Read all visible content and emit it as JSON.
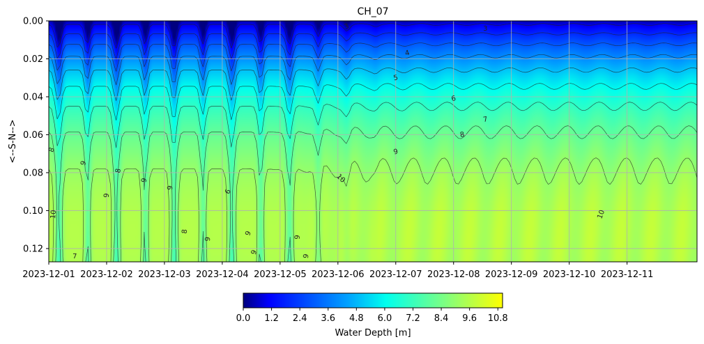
{
  "chart_data": {
    "type": "heatmap",
    "title": "CH_07",
    "xlabel": "",
    "ylabel": "<--S-N-->",
    "x_tick_labels": [
      "2023-12-01",
      "2023-12-02",
      "2023-12-03",
      "2023-12-04",
      "2023-12-05",
      "2023-12-06",
      "2023-12-07",
      "2023-12-08",
      "2023-12-09",
      "2023-12-10",
      "2023-12-11"
    ],
    "xlim": [
      "2023-12-01 00:00",
      "2023-12-12 05:00"
    ],
    "y_tick_labels": [
      "0.00",
      "0.02",
      "0.04",
      "0.06",
      "0.08",
      "0.10",
      "0.12"
    ],
    "ylim": [
      0.0,
      0.127
    ],
    "y_inverted": true,
    "grid": true,
    "colorbar": {
      "label": "Water Depth [m]",
      "ticks": [
        "0.0",
        "1.2",
        "2.4",
        "3.6",
        "4.8",
        "6.0",
        "7.2",
        "8.4",
        "9.6",
        "10.8"
      ],
      "range": [
        0.0,
        11.0
      ],
      "colormap": [
        "#00007f",
        "#0000ff",
        "#00a0ff",
        "#00ffee",
        "#7fff80",
        "#ffff00"
      ]
    },
    "z_description_by_position": {
      "surface_y_0": [
        0.2,
        3.0
      ],
      "y_0.02": [
        2.0,
        4.5
      ],
      "y_0.04": [
        4.5,
        6.2
      ],
      "y_0.06": [
        6.5,
        8.2
      ],
      "y_0.08": [
        8.0,
        9.8
      ],
      "y_0.10": [
        8.5,
        10.9
      ],
      "y_0.12": [
        7.5,
        10.3
      ]
    },
    "contour_levels": [
      1,
      2,
      3,
      4,
      5,
      6,
      7,
      8,
      9,
      10
    ],
    "contour_labels": [
      {
        "text": "3"
      },
      {
        "text": "3"
      },
      {
        "text": "4"
      },
      {
        "text": "5"
      },
      {
        "text": "6"
      },
      {
        "text": "7"
      },
      {
        "text": "8"
      },
      {
        "text": "9"
      },
      {
        "text": "10"
      },
      {
        "text": "10"
      },
      {
        "text": "9"
      },
      {
        "text": "8"
      },
      {
        "text": "9"
      },
      {
        "text": "9"
      },
      {
        "text": "6"
      },
      {
        "text": "10"
      },
      {
        "text": "9"
      },
      {
        "text": "8"
      },
      {
        "text": "9"
      },
      {
        "text": "9"
      },
      {
        "text": "9"
      },
      {
        "text": "9"
      },
      {
        "text": "7"
      },
      {
        "text": "8"
      },
      {
        "text": "9"
      }
    ]
  }
}
